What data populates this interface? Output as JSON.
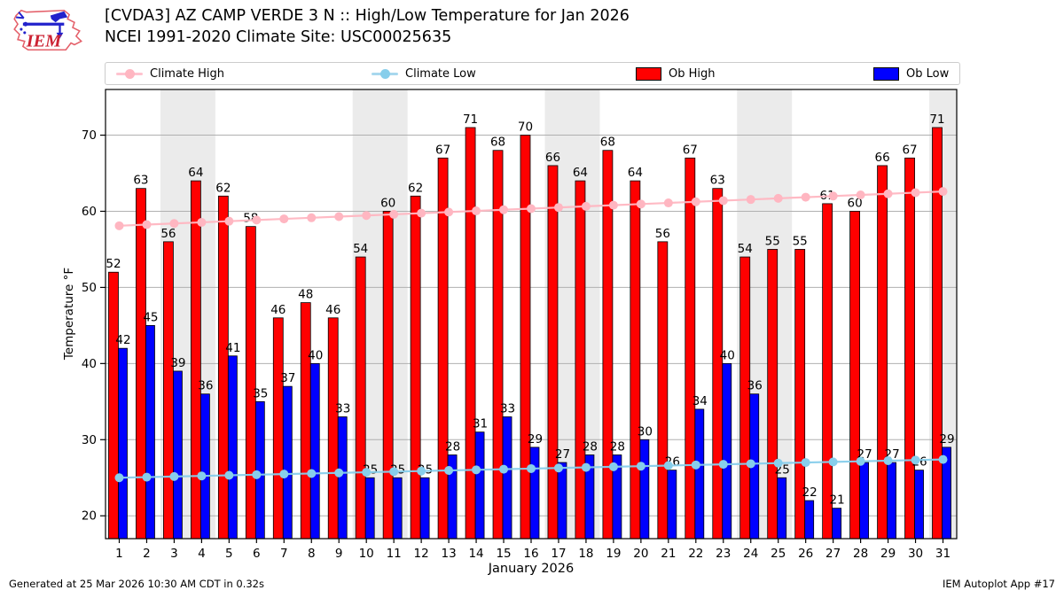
{
  "header": {
    "title": "[CVDA3] AZ CAMP VERDE 3 N :: High/Low Temperature for Jan 2026",
    "subtitle": "NCEI 1991-2020 Climate Site: USC00025635",
    "logo_text": "IEM"
  },
  "legend": {
    "items": [
      {
        "label": "Climate High",
        "type": "line",
        "color": "#ffb6c1"
      },
      {
        "label": "Climate Low",
        "type": "line",
        "color": "#87ceeb"
      },
      {
        "label": "Ob High",
        "type": "swatch",
        "color": "#ff0000"
      },
      {
        "label": "Ob Low",
        "type": "swatch",
        "color": "#0000ff"
      }
    ]
  },
  "chart_data": {
    "type": "bar",
    "title": "[CVDA3] AZ CAMP VERDE 3 N :: High/Low Temperature for Jan 2026",
    "xlabel": "January 2026",
    "ylabel": "Temperature °F",
    "x": [
      1,
      2,
      3,
      4,
      5,
      6,
      7,
      8,
      9,
      10,
      11,
      12,
      13,
      14,
      15,
      16,
      17,
      18,
      19,
      20,
      21,
      22,
      23,
      24,
      25,
      26,
      27,
      28,
      29,
      30,
      31
    ],
    "ylim": [
      17,
      76
    ],
    "yticks": [
      20,
      30,
      40,
      50,
      60,
      70
    ],
    "grid": "horizontal",
    "weekend_shading_days": [
      [
        3,
        4
      ],
      [
        10,
        11
      ],
      [
        17,
        18
      ],
      [
        24,
        25
      ],
      [
        31,
        31
      ]
    ],
    "series": [
      {
        "name": "Ob High",
        "type": "bar",
        "color": "#ff0000",
        "values": [
          52,
          63,
          56,
          64,
          62,
          58,
          46,
          48,
          46,
          54,
          60,
          62,
          67,
          71,
          68,
          70,
          66,
          64,
          68,
          64,
          56,
          67,
          63,
          54,
          55,
          55,
          61,
          60,
          66,
          67,
          71
        ]
      },
      {
        "name": "Ob Low",
        "type": "bar",
        "color": "#0000ff",
        "values": [
          42,
          45,
          39,
          36,
          41,
          35,
          37,
          40,
          33,
          25,
          25,
          25,
          28,
          31,
          33,
          29,
          27,
          28,
          28,
          30,
          26,
          34,
          40,
          36,
          25,
          22,
          21,
          27,
          27,
          26,
          29
        ]
      },
      {
        "name": "Climate High",
        "type": "line",
        "color": "#ffb6c1",
        "values": [
          58.1,
          58.25,
          58.4,
          58.55,
          58.7,
          58.85,
          59.0,
          59.15,
          59.3,
          59.45,
          59.6,
          59.75,
          59.9,
          60.05,
          60.2,
          60.35,
          60.5,
          60.65,
          60.8,
          60.95,
          61.1,
          61.25,
          61.4,
          61.55,
          61.7,
          61.85,
          62.0,
          62.15,
          62.3,
          62.45,
          62.6
        ]
      },
      {
        "name": "Climate Low",
        "type": "line",
        "color": "#87ceeb",
        "values": [
          25.0,
          25.08,
          25.16,
          25.24,
          25.32,
          25.4,
          25.48,
          25.56,
          25.64,
          25.72,
          25.8,
          25.88,
          25.96,
          26.04,
          26.12,
          26.2,
          26.28,
          26.36,
          26.44,
          26.52,
          26.6,
          26.68,
          26.76,
          26.84,
          26.92,
          27.0,
          27.08,
          27.16,
          27.24,
          27.32,
          27.4
        ]
      }
    ]
  },
  "footer": {
    "left": "Generated at 25 Mar 2026 10:30 AM CDT in 0.32s",
    "right": "IEM Autoplot App #17"
  },
  "colors": {
    "ob_high": "#ff0000",
    "ob_low": "#0000ff",
    "climate_high": "#ffb6c1",
    "climate_low": "#87ceeb",
    "weekend_band": "#ebebeb",
    "gridline": "#b0b0b0"
  }
}
